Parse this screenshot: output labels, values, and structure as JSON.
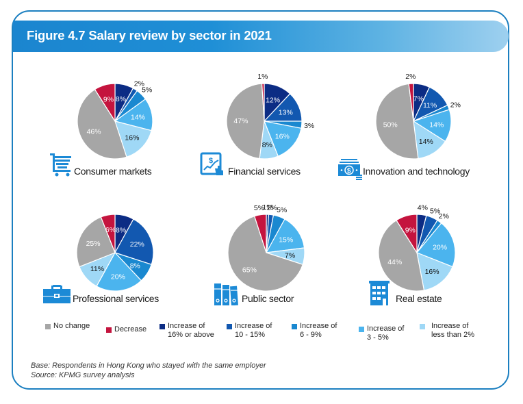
{
  "header": {
    "title": "Figure 4.7 Salary review by sector in 2021"
  },
  "colors": {
    "no_change": "#a6a6a6",
    "decrease": "#c4143e",
    "inc_16_plus": "#0c2c84",
    "inc_10_15": "#1258b0",
    "inc_6_9": "#1a88d0",
    "inc_3_5": "#4bb4ee",
    "inc_lt_2": "#9fd8f6",
    "frame": "#1b7fc0",
    "icon": "#1c8ad6"
  },
  "legend": [
    {
      "key": "no_change",
      "label": "No change"
    },
    {
      "key": "decrease",
      "label": "Decrease"
    },
    {
      "key": "inc_16_plus",
      "label": "Increase of\n16% or above"
    },
    {
      "key": "inc_10_15",
      "label": "Increase of\n10 - 15%"
    },
    {
      "key": "inc_6_9",
      "label": "Increase of\n6 - 9%"
    },
    {
      "key": "inc_3_5",
      "label": "Increase of\n3 - 5%"
    },
    {
      "key": "inc_lt_2",
      "label": "Increase of\nless than 2%"
    }
  ],
  "footnote": {
    "base": "Base: Respondents in Hong Kong who stayed with the same employer",
    "source": "Source: KPMG survey analysis"
  },
  "sectors": [
    {
      "name": "Consumer markets",
      "icon": "shopping-cart-icon"
    },
    {
      "name": "Financial services",
      "icon": "financial-tablet-icon"
    },
    {
      "name": "Innovation and technology",
      "icon": "money-bill-icon"
    },
    {
      "name": "Professional services",
      "icon": "briefcase-icon"
    },
    {
      "name": "Public sector",
      "icon": "binders-icon"
    },
    {
      "name": "Real estate",
      "icon": "building-icon"
    }
  ],
  "chart_data": {
    "type": "pie",
    "title": "Figure 4.7 Salary review by sector in 2021",
    "categories": [
      "Increase of 16% or above",
      "Increase of 10 - 15%",
      "Increase of 6 - 9%",
      "Increase of 3 - 5%",
      "Increase of less than 2%",
      "No change",
      "Decrease"
    ],
    "category_keys": [
      "inc_16_plus",
      "inc_10_15",
      "inc_6_9",
      "inc_3_5",
      "inc_lt_2",
      "no_change",
      "decrease"
    ],
    "unit": "%",
    "slice_order": "clockwise from top",
    "legend_position": "bottom",
    "series": [
      {
        "name": "Consumer markets",
        "values": [
          8,
          2,
          5,
          14,
          16,
          46,
          9
        ]
      },
      {
        "name": "Financial services",
        "values": [
          12,
          13,
          3,
          16,
          8,
          47,
          1
        ]
      },
      {
        "name": "Innovation and technology",
        "values": [
          7,
          11,
          2,
          14,
          14,
          50,
          2
        ]
      },
      {
        "name": "Professional services",
        "values": [
          8,
          22,
          8,
          20,
          11,
          25,
          6
        ]
      },
      {
        "name": "Public sector",
        "values": [
          1,
          2,
          5,
          15,
          7,
          65,
          5
        ]
      },
      {
        "name": "Real estate",
        "values": [
          4,
          5,
          2,
          20,
          16,
          44,
          9
        ]
      }
    ],
    "footnotes": [
      "Base: Respondents in Hong Kong who stayed with the same employer",
      "Source: KPMG survey analysis"
    ]
  }
}
